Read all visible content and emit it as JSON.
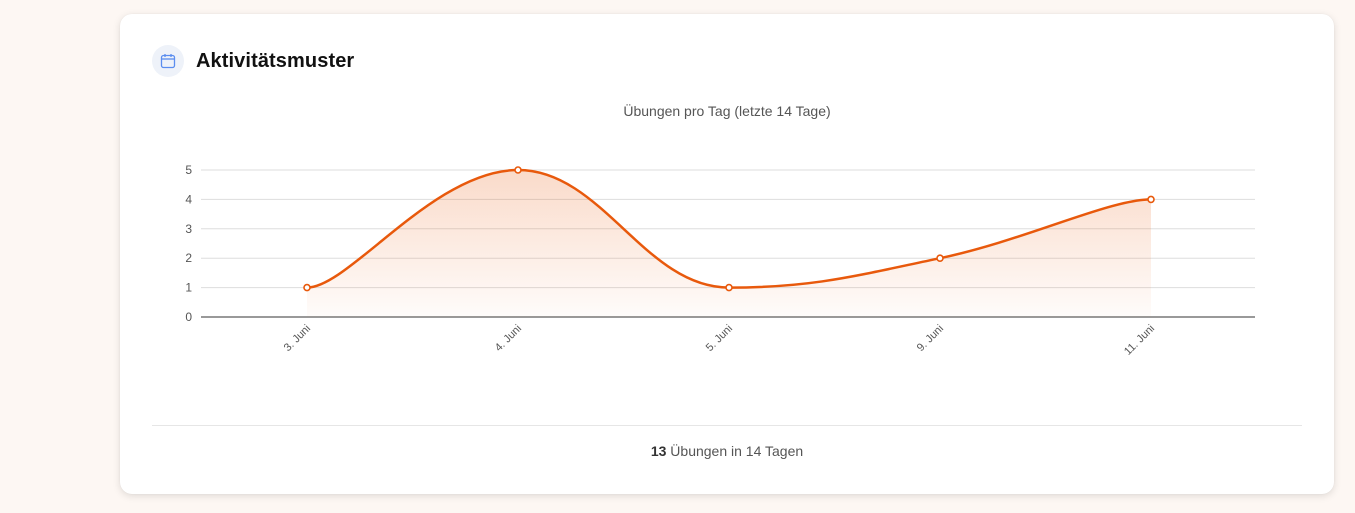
{
  "card": {
    "title": "Aktivitätsmuster",
    "icon": "calendar-icon"
  },
  "summary": {
    "count": "13",
    "text": " Übungen in 14 Tagen"
  },
  "colors": {
    "accent": "#e8590c",
    "icon": "#5b8def",
    "grid": "#dddddd"
  },
  "chart_data": {
    "type": "area",
    "title": "Übungen pro Tag (letzte 14 Tage)",
    "categories": [
      "3. Juni",
      "4. Juni",
      "5. Juni",
      "9. Juni",
      "11. Juni"
    ],
    "values": [
      1,
      5,
      1,
      2,
      4
    ],
    "ylim": [
      0,
      5
    ],
    "yticks": [
      0,
      1,
      2,
      3,
      4,
      5
    ],
    "grid": true,
    "legend": "none"
  }
}
